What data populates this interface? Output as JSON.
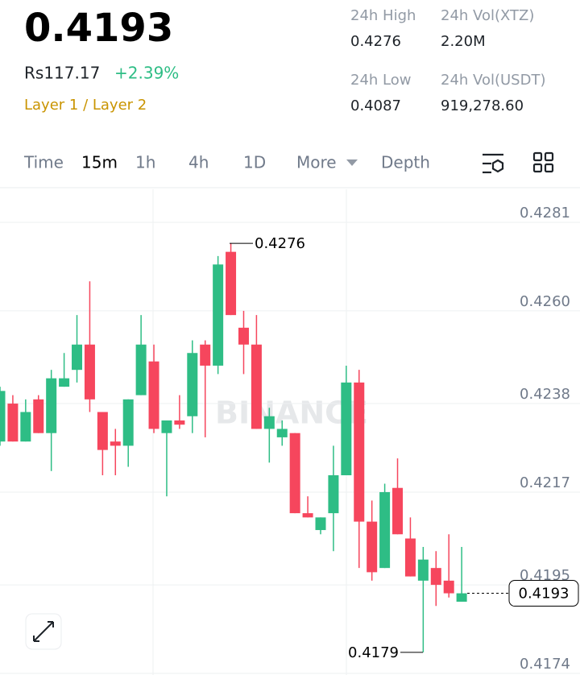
{
  "header": {
    "price": "0.4193",
    "fiat": "Rs117.17",
    "change": "+2.39%",
    "tags": "Layer 1 / Layer 2",
    "stats": [
      {
        "label": "24h High",
        "value": "0.4276"
      },
      {
        "label": "24h Vol(XTZ)",
        "value": "2.20M"
      },
      {
        "label": "24h Low",
        "value": "0.4087"
      },
      {
        "label": "24h Vol(USDT)",
        "value": "919,278.60"
      }
    ]
  },
  "tabs": [
    "Time",
    "15m",
    "1h",
    "4h",
    "1D",
    "More",
    "Depth"
  ],
  "chart_data": {
    "type": "candlestick",
    "watermark": "BINANCE",
    "open": [
      0.4229,
      0.4238,
      0.4229,
      0.4239,
      0.4231,
      0.4242,
      0.4246,
      0.4252,
      0.4236,
      0.4229,
      0.4228,
      0.424,
      0.4248,
      0.4231,
      0.4234,
      0.4235,
      0.4252,
      0.4247,
      0.4274,
      0.4256,
      0.4252,
      0.4232,
      0.423,
      0.4231,
      0.4212,
      0.4208,
      0.4212,
      0.4221,
      0.4243,
      0.421,
      0.4199,
      0.4218,
      0.4206,
      0.4196,
      0.4199,
      0.4196,
      0.4191
    ],
    "high": [
      0.4242,
      0.424,
      0.4239,
      0.424,
      0.4246,
      0.425,
      0.4259,
      0.4267,
      0.4236,
      0.4232,
      0.4239,
      0.4259,
      0.4252,
      0.4234,
      0.424,
      0.4253,
      0.4253,
      0.4273,
      0.4276,
      0.426,
      0.4259,
      0.4237,
      0.4234,
      0.4231,
      0.4216,
      0.4211,
      0.4228,
      0.4247,
      0.4246,
      0.4215,
      0.4219,
      0.4225,
      0.4211,
      0.4204,
      0.4203,
      0.4207,
      0.4204
    ],
    "low": [
      0.4228,
      0.4229,
      0.4229,
      0.4231,
      0.4222,
      0.4242,
      0.4243,
      0.4236,
      0.4221,
      0.4221,
      0.4223,
      0.424,
      0.4231,
      0.4216,
      0.4232,
      0.4231,
      0.423,
      0.4245,
      0.4259,
      0.4245,
      0.4232,
      0.4224,
      0.4228,
      0.4212,
      0.4211,
      0.4207,
      0.4203,
      0.4221,
      0.4199,
      0.4196,
      0.4199,
      0.4207,
      0.4197,
      0.4179,
      0.419,
      0.4192,
      0.4191
    ],
    "close": [
      0.4241,
      0.4229,
      0.4236,
      0.4231,
      0.4244,
      0.4244,
      0.4252,
      0.4239,
      0.4227,
      0.4228,
      0.4239,
      0.4252,
      0.4232,
      0.4234,
      0.4233,
      0.425,
      0.4247,
      0.4271,
      0.4259,
      0.4252,
      0.4232,
      0.4235,
      0.4232,
      0.4212,
      0.4211,
      0.4211,
      0.4221,
      0.4243,
      0.421,
      0.4198,
      0.4217,
      0.4207,
      0.4197,
      0.4201,
      0.4195,
      0.4193,
      0.4193
    ],
    "up_color": "#2ebd85",
    "down_color": "#f6465d",
    "ylim": [
      0.4174,
      0.4281
    ],
    "yticks": [
      0.4281,
      {
        "value": 0.426,
        "label": "0.4260"
      },
      0.4238,
      0.4217,
      0.4195,
      0.4174
    ],
    "grid": true,
    "annotations": {
      "max": 0.4276,
      "min": 0.4179,
      "last": 0.4193
    }
  }
}
